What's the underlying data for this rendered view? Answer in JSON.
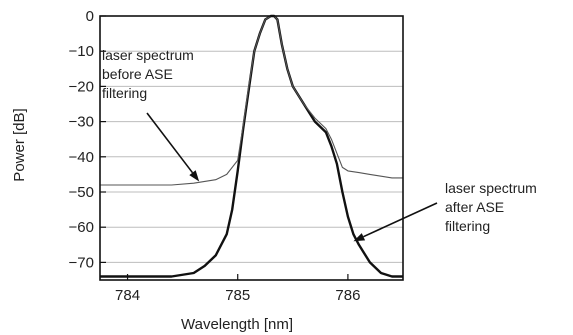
{
  "chart_data": {
    "type": "line",
    "title": "",
    "xlabel": "Wavelength [nm]",
    "ylabel": "Power [dB]",
    "xlim": [
      783.75,
      786.5
    ],
    "ylim": [
      -75,
      0
    ],
    "xticks": [
      784,
      785,
      786
    ],
    "yticks": [
      0,
      -10,
      -20,
      -30,
      -40,
      -50,
      -60,
      -70
    ],
    "grid": "horizontal",
    "legend": "none",
    "series": [
      {
        "key": "after",
        "color": "#111111",
        "x": [
          783.75,
          784.0,
          784.2,
          784.4,
          784.6,
          784.7,
          784.8,
          784.9,
          784.95,
          785.0,
          785.05,
          785.1,
          785.15,
          785.2,
          785.25,
          785.3,
          785.33,
          785.36,
          785.4,
          785.45,
          785.5,
          785.6,
          785.7,
          785.8,
          785.85,
          785.9,
          785.95,
          786.0,
          786.05,
          786.1,
          786.2,
          786.3,
          786.4,
          786.5
        ],
        "y": [
          -74,
          -74,
          -74,
          -74,
          -73,
          -71,
          -68,
          -62,
          -55,
          -44,
          -32,
          -21,
          -10,
          -5,
          -1,
          0,
          0,
          -1,
          -8,
          -15,
          -20,
          -25,
          -30,
          -33,
          -37,
          -42,
          -50,
          -57,
          -62,
          -65,
          -70,
          -73,
          -74,
          -74
        ]
      },
      {
        "key": "before",
        "color": "#555555",
        "x": [
          783.75,
          784.0,
          784.2,
          784.4,
          784.6,
          784.7,
          784.8,
          784.9,
          785.0,
          785.05,
          785.1,
          785.15,
          785.2,
          785.25,
          785.3,
          785.33,
          785.36,
          785.4,
          785.45,
          785.5,
          785.6,
          785.7,
          785.8,
          785.85,
          785.9,
          785.95,
          786.0,
          786.1,
          786.2,
          786.3,
          786.4,
          786.5
        ],
        "y": [
          -48,
          -48,
          -48,
          -48,
          -47.5,
          -47,
          -46.5,
          -45,
          -41,
          -31,
          -20,
          -10,
          -5,
          -1,
          0,
          0,
          -1,
          -8,
          -15,
          -20,
          -25,
          -29,
          -32,
          -35,
          -39,
          -43,
          -44,
          -44.5,
          -45,
          -45.5,
          -46,
          -46
        ]
      }
    ],
    "annotations": [
      {
        "key": "before",
        "lines": [
          "laser spectrum",
          "before ASE",
          "filtering"
        ],
        "arrow_to": [
          784.65,
          -47
        ]
      },
      {
        "key": "after",
        "lines": [
          "laser spectrum",
          "after ASE",
          "filtering"
        ],
        "arrow_to": [
          786.05,
          -64
        ]
      }
    ]
  }
}
